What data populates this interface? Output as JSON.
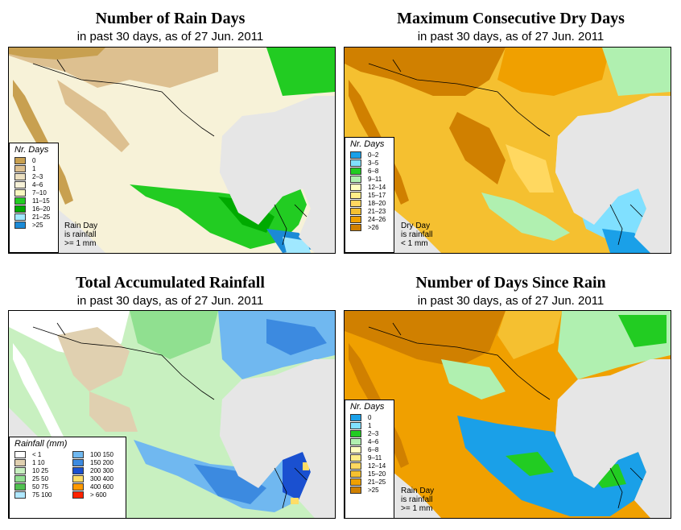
{
  "panels": {
    "rain_days": {
      "title": "Number of Rain Days",
      "subtitle": "in past 30 days, as of  27 Jun. 2011",
      "legend_title": "Nr. Days",
      "legend": [
        {
          "label": "0",
          "color": "#c8a050"
        },
        {
          "label": "1",
          "color": "#ddc090"
        },
        {
          "label": "2–3",
          "color": "#ece0c0"
        },
        {
          "label": "4–6",
          "color": "#f7f2d8"
        },
        {
          "label": "7–10",
          "color": "#f8f8c0"
        },
        {
          "label": "11–15",
          "color": "#22cc22"
        },
        {
          "label": "16–20",
          "color": "#00aa00"
        },
        {
          "label": "21–25",
          "color": "#a0e8ff"
        },
        {
          "label": ">25",
          "color": "#1b8ad6"
        }
      ],
      "note": [
        "Rain Day",
        "is rainfall",
        ">= 1 mm"
      ]
    },
    "dry_days": {
      "title": "Maximum Consecutive Dry Days",
      "subtitle": "in past 30 days, as of  27 Jun. 2011",
      "legend_title": "Nr. Days",
      "legend": [
        {
          "label": "0–2",
          "color": "#1aa0e8"
        },
        {
          "label": "3–5",
          "color": "#80e0ff"
        },
        {
          "label": "6–8",
          "color": "#22cc22"
        },
        {
          "label": "9–11",
          "color": "#b0f0b0"
        },
        {
          "label": "12–14",
          "color": "#ffffc0"
        },
        {
          "label": "15–17",
          "color": "#ffee88"
        },
        {
          "label": "18–20",
          "color": "#ffd860"
        },
        {
          "label": "21–23",
          "color": "#f5c030"
        },
        {
          "label": "24–26",
          "color": "#f0a000"
        },
        {
          "label": ">26",
          "color": "#d08000"
        }
      ],
      "note": [
        "Dry Day",
        "is rainfall",
        "< 1 mm"
      ]
    },
    "total_rain": {
      "title": "Total Accumulated Rainfall",
      "subtitle": "in past 30 days, as of  27 Jun. 2011",
      "legend_title": "Rainfall (mm)",
      "legend_left": [
        {
          "label": "< 1",
          "color": "#ffffff"
        },
        {
          "label": "1    10",
          "color": "#e0d0b0"
        },
        {
          "label": "10    25",
          "color": "#c8f0c0"
        },
        {
          "label": "25    50",
          "color": "#90e090"
        },
        {
          "label": "50    75",
          "color": "#50c050"
        },
        {
          "label": "75  100",
          "color": "#b0e8ff"
        }
      ],
      "legend_right": [
        {
          "label": "100  150",
          "color": "#70b8f0"
        },
        {
          "label": "150  200",
          "color": "#3c8ae0"
        },
        {
          "label": "200  300",
          "color": "#1a50d0"
        },
        {
          "label": "300  400",
          "color": "#ffdd66"
        },
        {
          "label": "400  600",
          "color": "#ff9900"
        },
        {
          "label": "> 600",
          "color": "#ff2200"
        }
      ]
    },
    "since_rain": {
      "title": "Number of Days Since Rain",
      "subtitle": "in past 30 days, as of  27 Jun. 2011",
      "legend_title": "Nr. Days",
      "legend": [
        {
          "label": "0",
          "color": "#1aa0e8"
        },
        {
          "label": "1",
          "color": "#80e0ff"
        },
        {
          "label": "2–3",
          "color": "#22cc22"
        },
        {
          "label": "4–6",
          "color": "#b0f0b0"
        },
        {
          "label": "6–8",
          "color": "#ffffc0"
        },
        {
          "label": "9–11",
          "color": "#ffee88"
        },
        {
          "label": "12–14",
          "color": "#ffd860"
        },
        {
          "label": "15–20",
          "color": "#f5c030"
        },
        {
          "label": "21–25",
          "color": "#f0a000"
        },
        {
          "label": ">25",
          "color": "#d08000"
        }
      ],
      "note": [
        "Rain Day",
        "is rainfall",
        ">= 1 mm"
      ]
    }
  }
}
